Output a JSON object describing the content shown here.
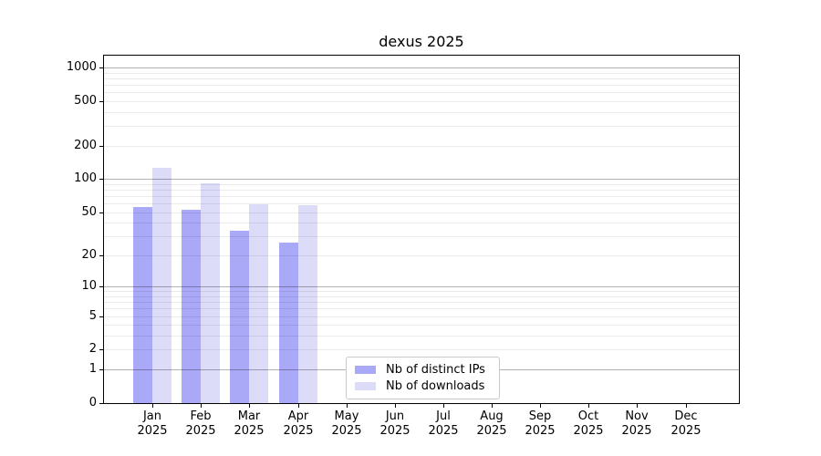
{
  "title": "dexus 2025",
  "legend": {
    "items": [
      {
        "label": "Nb of distinct IPs",
        "color": "#a9a9f7"
      },
      {
        "label": "Nb of downloads",
        "color": "#dcdcf9"
      }
    ]
  },
  "chart_data": {
    "type": "bar",
    "title": "dexus 2025",
    "categories": [
      "Jan",
      "Feb",
      "Mar",
      "Apr",
      "May",
      "Jun",
      "Jul",
      "Aug",
      "Sep",
      "Oct",
      "Nov",
      "Dec"
    ],
    "category_year": "2025",
    "series": [
      {
        "name": "Nb of distinct IPs",
        "color": "#a9a9f7",
        "values": [
          56,
          53,
          34,
          26,
          0,
          0,
          0,
          0,
          0,
          0,
          0,
          0
        ]
      },
      {
        "name": "Nb of downloads",
        "color": "#dcdcf9",
        "values": [
          125,
          92,
          59,
          58,
          0,
          0,
          0,
          0,
          0,
          0,
          0,
          0
        ]
      }
    ],
    "yscale": "log1p",
    "yticks": [
      1000,
      500,
      200,
      100,
      50,
      20,
      10,
      5,
      2,
      1,
      0
    ],
    "ylim": [
      0,
      1270
    ],
    "grid": "on",
    "legend_position": "lower center"
  }
}
